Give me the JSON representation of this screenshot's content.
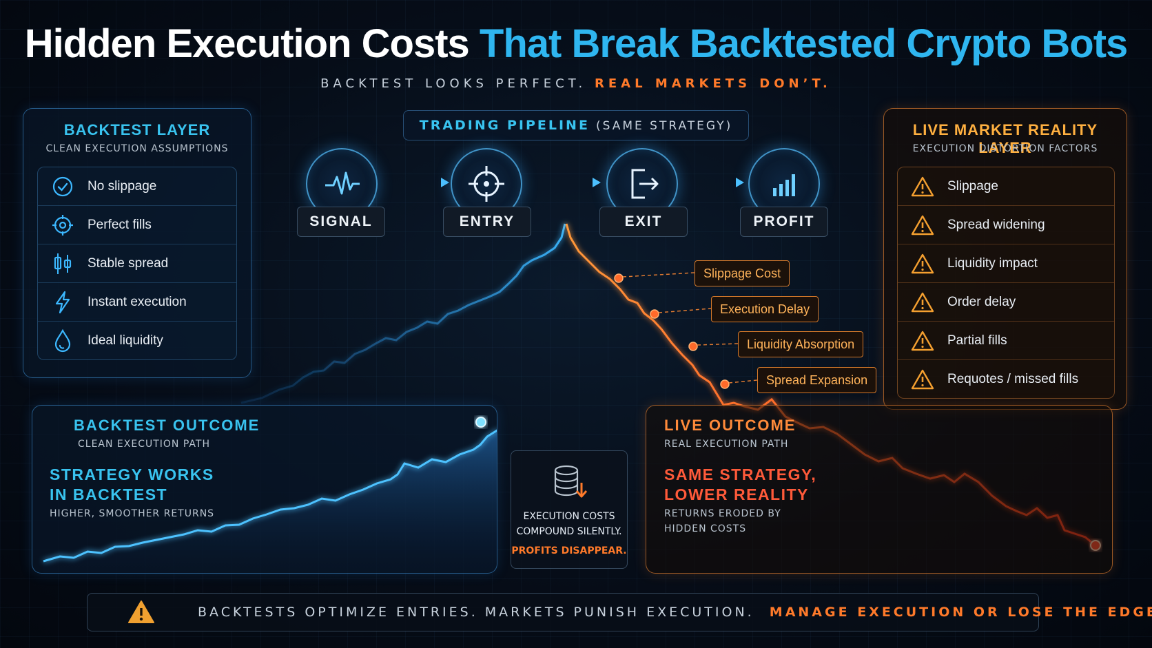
{
  "title": {
    "part1": "Hidden Execution Costs",
    "part2": "That Break Backtested Crypto Bots"
  },
  "subtitle": {
    "part1": "BACKTEST LOOKS PERFECT.",
    "part2": "REAL MARKETS DON’T."
  },
  "backtest_layer": {
    "heading": "BACKTEST LAYER",
    "subheading": "CLEAN EXECUTION ASSUMPTIONS",
    "items": [
      {
        "label": "No slippage",
        "icon": "check-circle-icon"
      },
      {
        "label": "Perfect fills",
        "icon": "target-icon"
      },
      {
        "label": "Stable spread",
        "icon": "candlestick-icon"
      },
      {
        "label": "Instant execution",
        "icon": "lightning-icon"
      },
      {
        "label": "Ideal liquidity",
        "icon": "droplet-icon"
      }
    ]
  },
  "live_layer": {
    "heading": "LIVE MARKET REALITY LAYER",
    "subheading": "EXECUTION DISTORTION FACTORS",
    "items": [
      {
        "label": "Slippage",
        "icon": "warning-icon"
      },
      {
        "label": "Spread widening",
        "icon": "warning-icon"
      },
      {
        "label": "Liquidity impact",
        "icon": "warning-icon"
      },
      {
        "label": "Order delay",
        "icon": "warning-icon"
      },
      {
        "label": "Partial fills",
        "icon": "warning-icon"
      },
      {
        "label": "Requotes / missed fills",
        "icon": "warning-icon"
      }
    ]
  },
  "pipeline": {
    "label": "TRADING PIPELINE",
    "label_suffix": "(SAME STRATEGY)",
    "stages": [
      {
        "label": "SIGNAL",
        "icon": "pulse-icon"
      },
      {
        "label": "ENTRY",
        "icon": "crosshair-icon"
      },
      {
        "label": "EXIT",
        "icon": "exit-icon"
      },
      {
        "label": "PROFIT",
        "icon": "bar-chart-icon"
      }
    ]
  },
  "callouts": [
    "Slippage Cost",
    "Execution Delay",
    "Liquidity Absorption",
    "Spread Expansion"
  ],
  "backtest_outcome": {
    "heading": "BACKTEST OUTCOME",
    "subheading": "CLEAN EXECUTION PATH",
    "big_line1": "STRATEGY WORKS",
    "big_line2": "IN BACKTEST",
    "small": "HIGHER, SMOOTHER RETURNS"
  },
  "center_note": {
    "icon": "database-down-icon",
    "line1": "EXECUTION COSTS",
    "line2": "COMPOUND SILENTLY.",
    "line3": "PROFITS DISAPPEAR."
  },
  "live_outcome": {
    "heading": "LIVE OUTCOME",
    "subheading": "REAL EXECUTION PATH",
    "big_line1": "SAME STRATEGY,",
    "big_line2": "LOWER REALITY",
    "small_line1": "RETURNS ERODED BY",
    "small_line2": "HIDDEN COSTS"
  },
  "footer": {
    "icon": "warning-icon",
    "part1": "BACKTESTS OPTIMIZE ENTRIES. MARKETS PUNISH EXECUTION.",
    "part2": "MANAGE EXECUTION OR LOSE THE EDGE."
  },
  "colors": {
    "blue": "#2fb6f0",
    "orange": "#ff7a2a",
    "amber": "#f0a030",
    "bg": "#060d18"
  }
}
